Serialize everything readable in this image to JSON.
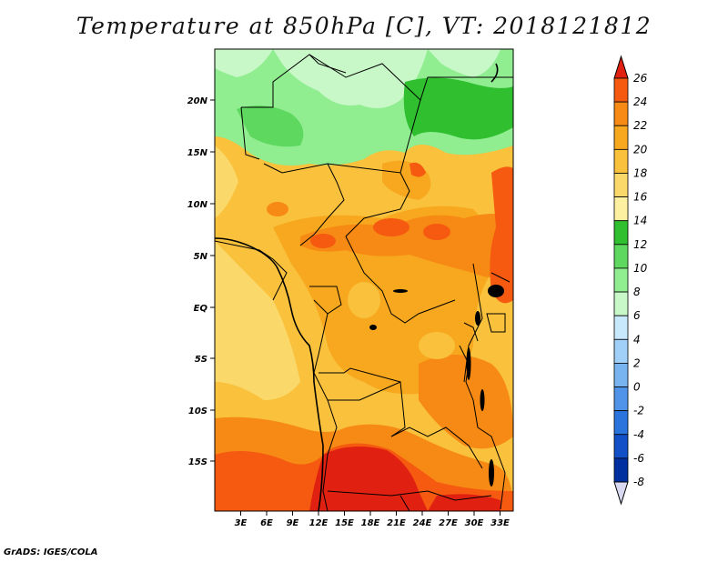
{
  "title": "Temperature at 850hPa [C], VT: 2018121812",
  "credit": "GrADS: IGES/COLA",
  "map": {
    "lat_labels": [
      "20N",
      "15N",
      "10N",
      "5N",
      "EQ",
      "5S",
      "10S",
      "15S"
    ],
    "lon_labels": [
      "3E",
      "6E",
      "9E",
      "12E",
      "15E",
      "18E",
      "21E",
      "24E",
      "27E",
      "30E",
      "33E"
    ]
  },
  "colorbar": {
    "labels": [
      "26",
      "24",
      "22",
      "20",
      "18",
      "16",
      "14",
      "12",
      "10",
      "8",
      "6",
      "4",
      "2",
      "0",
      "-2",
      "-4",
      "-6",
      "-8"
    ],
    "colors": [
      "#f03010",
      "#f55a10",
      "#f78a14",
      "#f7a81e",
      "#f9c13c",
      "#fbd86a",
      "#fdf0a0",
      "#2fbf2f",
      "#5fd85f",
      "#90ee90",
      "#c8f7c8",
      "#c8e8fb",
      "#a0d0f7",
      "#78b4f0",
      "#5094ea",
      "#2a74de",
      "#1250c8",
      "#0030a0",
      "#001a70"
    ],
    "over_color": "#e02010",
    "under_color": "#d8d8f0"
  }
}
